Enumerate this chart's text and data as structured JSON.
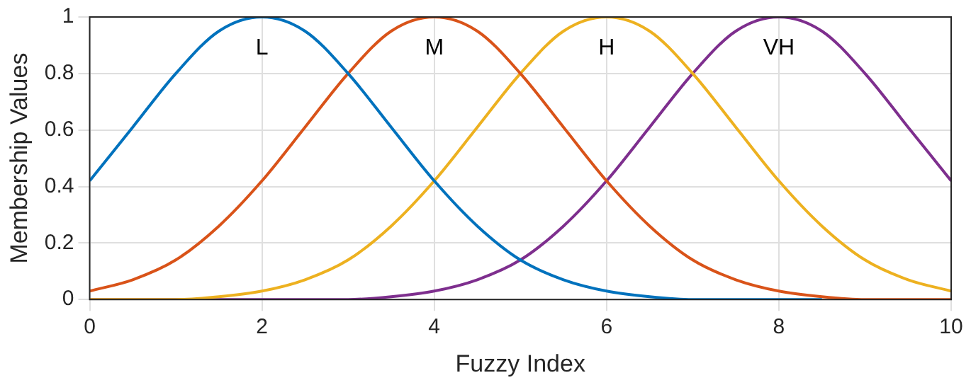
{
  "chart_data": {
    "type": "line",
    "xlabel": "Fuzzy Index",
    "ylabel": "Membership Values",
    "x": [
      0,
      0.5,
      1,
      1.5,
      2,
      2.5,
      3,
      3.5,
      4,
      4.5,
      5,
      5.5,
      6,
      6.5,
      7,
      7.5,
      8,
      8.5,
      9,
      9.5,
      10
    ],
    "series": [
      {
        "name": "L",
        "color": "#0072bd",
        "values": [
          0.42,
          0.61,
          0.8,
          0.95,
          1,
          0.95,
          0.8,
          0.61,
          0.42,
          0.26,
          0.14,
          0.07,
          0.03,
          0.01,
          0,
          0,
          0,
          0,
          null,
          null,
          null
        ]
      },
      {
        "name": "M",
        "color": "#d95319",
        "values": [
          0.03,
          0.07,
          0.14,
          0.26,
          0.42,
          0.61,
          0.8,
          0.95,
          1,
          0.95,
          0.8,
          0.61,
          0.42,
          0.26,
          0.14,
          0.07,
          0.03,
          0.01,
          0,
          0,
          0
        ]
      },
      {
        "name": "H",
        "color": "#edb120",
        "values": [
          0,
          0,
          0,
          0.01,
          0.03,
          0.07,
          0.14,
          0.26,
          0.42,
          0.61,
          0.8,
          0.95,
          1,
          0.95,
          0.8,
          0.61,
          0.42,
          0.26,
          0.14,
          0.07,
          0.03
        ]
      },
      {
        "name": "VH",
        "color": "#7e2f8e",
        "values": [
          0,
          0,
          0,
          0,
          0,
          0,
          0,
          0.01,
          0.03,
          0.07,
          0.14,
          0.26,
          0.42,
          0.61,
          0.8,
          0.95,
          1,
          0.95,
          0.8,
          0.61,
          0.42
        ]
      }
    ],
    "xlim": [
      0,
      10
    ],
    "xticks": [
      0,
      2,
      4,
      6,
      8,
      10
    ],
    "ylim": [
      0,
      1
    ],
    "yticks": [
      0,
      0.2,
      0.4,
      0.6,
      0.8,
      1
    ],
    "grid": true,
    "legend": false,
    "marker": "none",
    "line_style": "solid"
  }
}
